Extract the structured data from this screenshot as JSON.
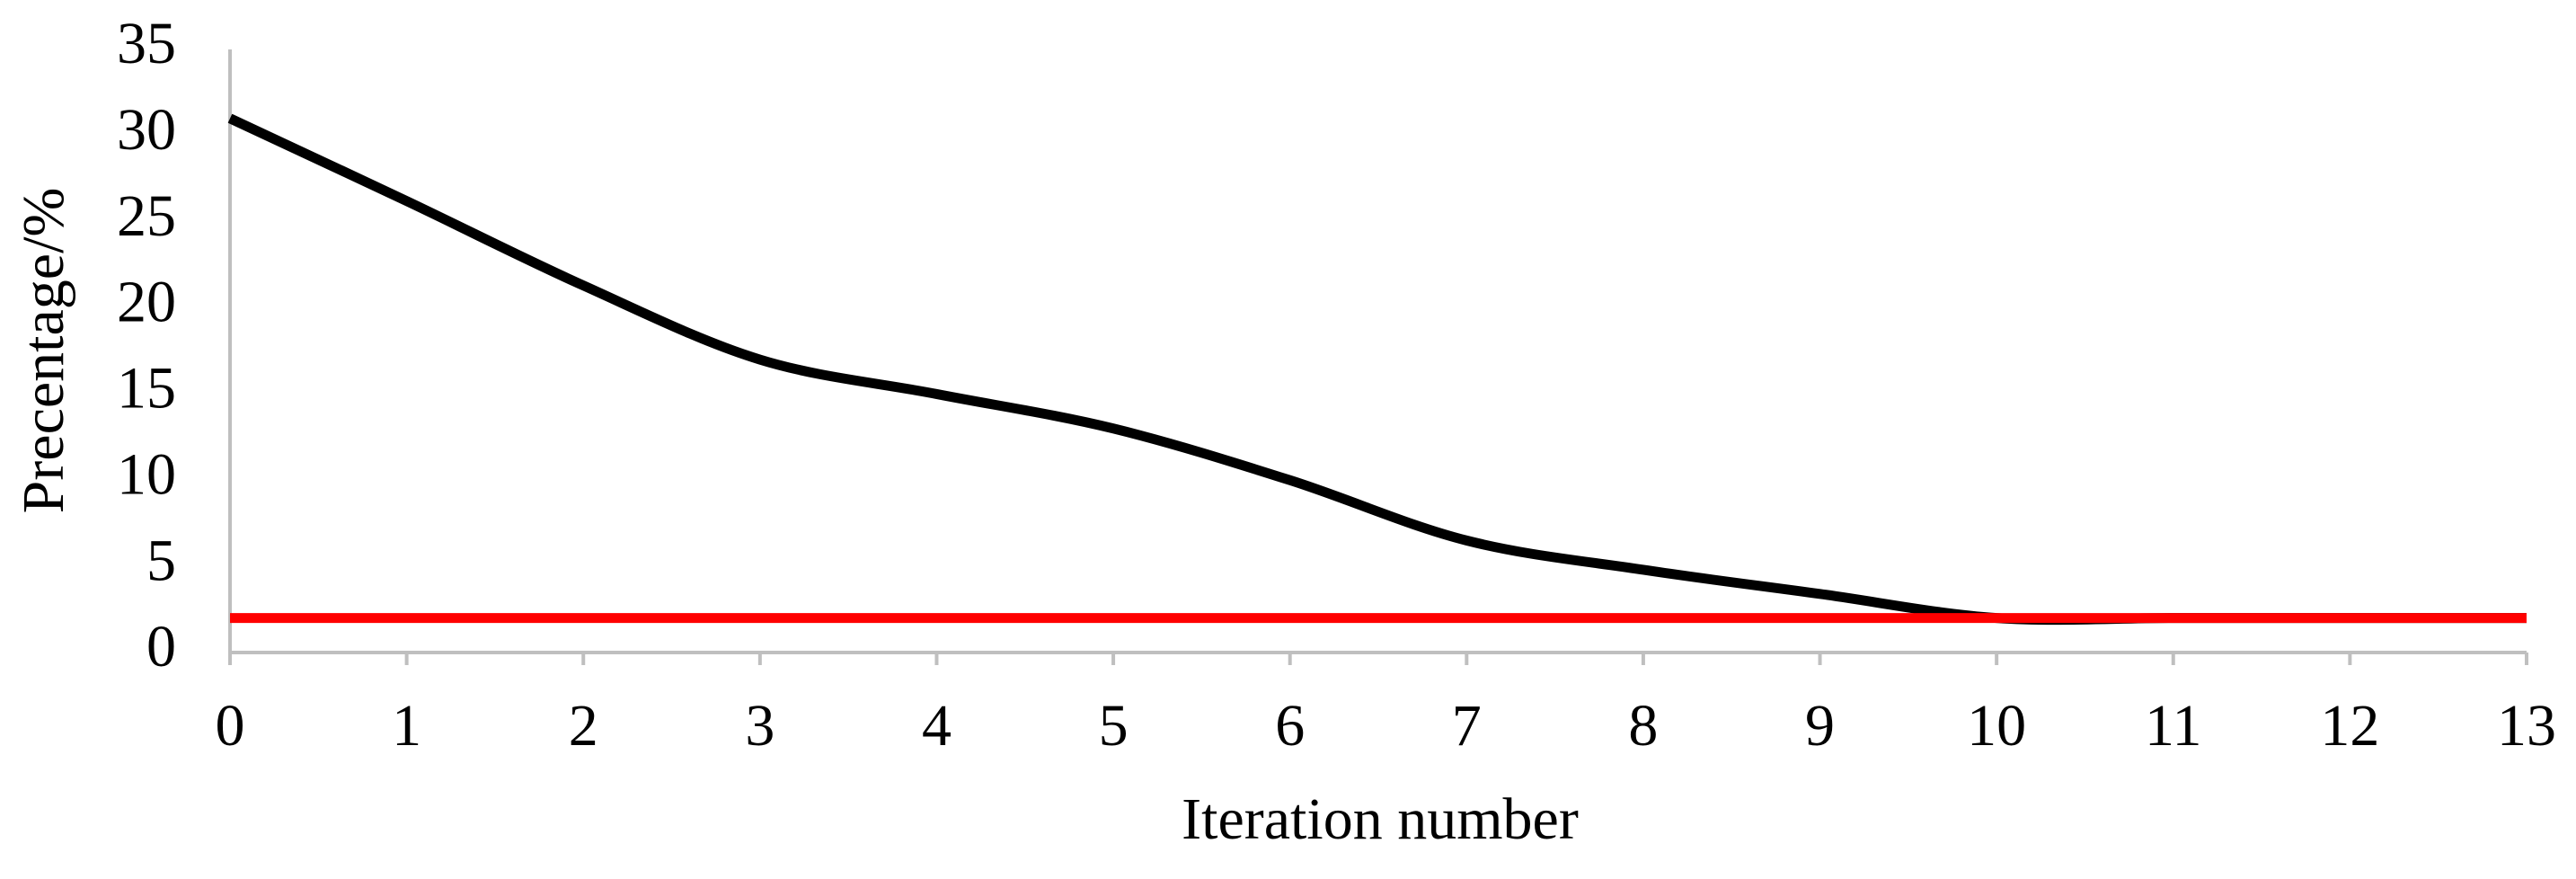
{
  "chart_data": {
    "type": "line",
    "x_label": "Iteration number",
    "y_label": "Precentage/%",
    "x": [
      0,
      1,
      2,
      3,
      4,
      5,
      6,
      7,
      8,
      9,
      10,
      11,
      12,
      13
    ],
    "series": [
      {
        "color": "#000000",
        "values": [
          31,
          26.2,
          21.3,
          17,
          15,
          13,
          10,
          6.5,
          4.8,
          3.4,
          2,
          2,
          2,
          2
        ]
      },
      {
        "color": "#ff0000",
        "values": [
          2,
          2,
          2,
          2,
          2,
          2,
          2,
          2,
          2,
          2,
          2,
          2,
          2,
          2
        ]
      }
    ],
    "xlim": [
      0,
      13
    ],
    "xticks": [
      0,
      1,
      2,
      3,
      4,
      5,
      6,
      7,
      8,
      9,
      10,
      11,
      12,
      13
    ],
    "ylim": [
      0,
      35
    ],
    "yticks": [
      0,
      5,
      10,
      15,
      20,
      25,
      30,
      35
    ],
    "grid": false
  }
}
